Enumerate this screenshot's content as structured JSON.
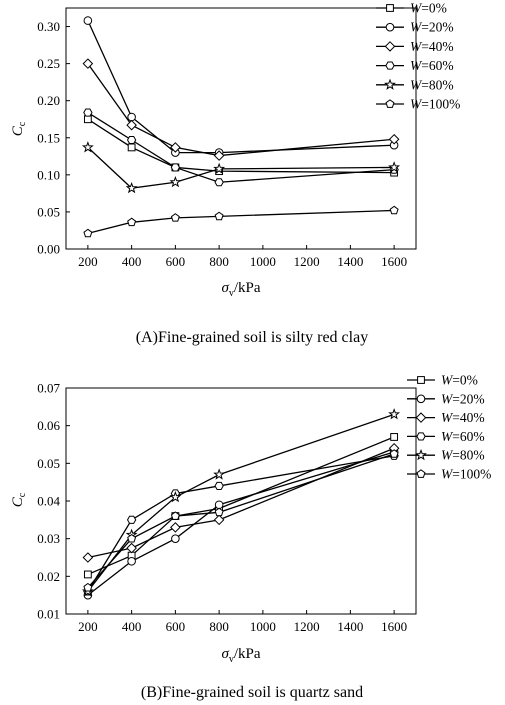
{
  "chart_data": [
    {
      "id": "A",
      "type": "line",
      "caption": "(A)Fine-grained soil is silty red clay",
      "xlabel": "σv/kPa",
      "xlabel_main": "σ",
      "xlabel_sub": "v",
      "xlabel_rest": "/kPa",
      "ylabel": "Cc",
      "ylabel_main": "C",
      "ylabel_sub": "c",
      "x_ticks": [
        "200",
        "400",
        "600",
        "800",
        "1000",
        "1200",
        "1400",
        "1600"
      ],
      "y_ticks": [
        "0.00",
        "0.05",
        "0.10",
        "0.15",
        "0.20",
        "0.25",
        "0.30"
      ],
      "xlim": [
        100,
        1700
      ],
      "ylim": [
        0,
        0.325
      ],
      "legend_position": "top-right",
      "series": [
        {
          "name": "W=0%",
          "var": "W",
          "rest": "=0%",
          "marker": "square",
          "x": [
            200,
            400,
            600,
            800,
            1600
          ],
          "y": [
            0.175,
            0.137,
            0.11,
            0.105,
            0.103
          ]
        },
        {
          "name": "W=20%",
          "var": "W",
          "rest": "=20%",
          "marker": "circle",
          "x": [
            200,
            400,
            600,
            800,
            1600
          ],
          "y": [
            0.308,
            0.178,
            0.13,
            0.13,
            0.14
          ]
        },
        {
          "name": "W=40%",
          "var": "W",
          "rest": "=40%",
          "marker": "diamond",
          "x": [
            200,
            400,
            600,
            800,
            1600
          ],
          "y": [
            0.25,
            0.167,
            0.137,
            0.126,
            0.148
          ]
        },
        {
          "name": "W=60%",
          "var": "W",
          "rest": "=60%",
          "marker": "hexagon",
          "x": [
            200,
            400,
            600,
            800,
            1600
          ],
          "y": [
            0.184,
            0.147,
            0.11,
            0.09,
            0.107
          ]
        },
        {
          "name": "W=80%",
          "var": "W",
          "rest": "=80%",
          "marker": "star",
          "x": [
            200,
            400,
            600,
            800,
            1600
          ],
          "y": [
            0.137,
            0.082,
            0.09,
            0.108,
            0.11
          ]
        },
        {
          "name": "W=100%",
          "var": "W",
          "rest": "=100%",
          "marker": "pentagon",
          "x": [
            200,
            400,
            600,
            800,
            1600
          ],
          "y": [
            0.021,
            0.036,
            0.042,
            0.044,
            0.052
          ]
        }
      ]
    },
    {
      "id": "B",
      "type": "line",
      "caption": "(B)Fine-grained soil is quartz sand",
      "xlabel": "σv/kPa",
      "xlabel_main": "σ",
      "xlabel_sub": "v",
      "xlabel_rest": "/kPa",
      "ylabel": "Cc",
      "ylabel_main": "C",
      "ylabel_sub": "c",
      "x_ticks": [
        "200",
        "400",
        "600",
        "800",
        "1000",
        "1200",
        "1400",
        "1600"
      ],
      "y_ticks": [
        "0.01",
        "0.02",
        "0.03",
        "0.04",
        "0.05",
        "0.06",
        "0.07"
      ],
      "xlim": [
        100,
        1700
      ],
      "ylim": [
        0.01,
        0.07
      ],
      "legend_position": "top-right",
      "series": [
        {
          "name": "W=0%",
          "var": "W",
          "rest": "=0%",
          "marker": "square",
          "x": [
            200,
            400,
            600,
            800,
            1600
          ],
          "y": [
            0.0205,
            0.0255,
            0.036,
            0.038,
            0.057
          ]
        },
        {
          "name": "W=20%",
          "var": "W",
          "rest": "=20%",
          "marker": "circle",
          "x": [
            200,
            400,
            600,
            800,
            1600
          ],
          "y": [
            0.015,
            0.024,
            0.03,
            0.039,
            0.053
          ]
        },
        {
          "name": "W=40%",
          "var": "W",
          "rest": "=40%",
          "marker": "diamond",
          "x": [
            200,
            400,
            600,
            800,
            1600
          ],
          "y": [
            0.025,
            0.0275,
            0.033,
            0.035,
            0.054
          ]
        },
        {
          "name": "W=60%",
          "var": "W",
          "rest": "=60%",
          "marker": "hexagon",
          "x": [
            200,
            400,
            600,
            800,
            1600
          ],
          "y": [
            0.016,
            0.035,
            0.042,
            0.044,
            0.052
          ]
        },
        {
          "name": "W=80%",
          "var": "W",
          "rest": "=80%",
          "marker": "star",
          "x": [
            200,
            400,
            600,
            800,
            1600
          ],
          "y": [
            0.016,
            0.031,
            0.041,
            0.047,
            0.063
          ]
        },
        {
          "name": "W=100%",
          "var": "W",
          "rest": "=100%",
          "marker": "pentagon",
          "x": [
            200,
            400,
            600,
            800,
            1600
          ],
          "y": [
            0.017,
            0.03,
            0.036,
            0.037,
            0.0525
          ]
        }
      ]
    }
  ]
}
